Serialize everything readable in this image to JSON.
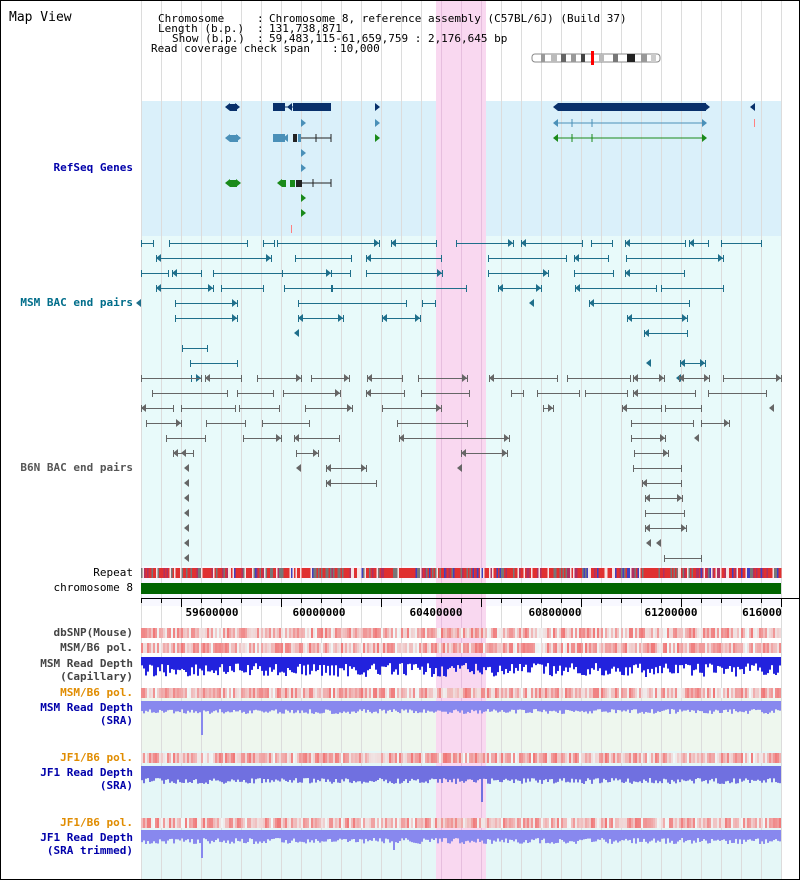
{
  "title": "Map View",
  "header": {
    "chromosome_key": "Chromosome",
    "chromosome_val": "Chromosome 8, reference assembly (C57BL/6J) (Build 37)",
    "length_key": "Length (b.p.)",
    "length_val": "131,738,871",
    "show_key": "Show (b.p.)",
    "show_val": "59,483,115-61,659,759 : 2,176,645 bp",
    "read_key": "Read coverage check span",
    "read_val": "10,000"
  },
  "tracks": {
    "refseq": "RefSeq Genes",
    "msm_bac": "MSM BAC end pairs",
    "b6n_bac": "B6N BAC end pairs",
    "repeat": "Repeat",
    "chromosome": "chromosome 8",
    "dbsnp": "dbSNP(Mouse)",
    "msm_b6_pol_1": "MSM/B6 pol.",
    "msm_depth_cap_1": "MSM Read Depth",
    "msm_depth_cap_2": "(Capillary)",
    "msm_b6_pol_2": "MSM/B6 pol.",
    "msm_depth_sra_1": "MSM Read Depth",
    "msm_depth_sra_2": "(SRA)",
    "jf1_b6_pol_1": "JF1/B6 pol.",
    "jf1_depth_1": "JF1 Read Depth",
    "jf1_depth_2": "(SRA)",
    "jf1_b6_pol_2": "JF1/B6 pol.",
    "jf1_trim_1": "JF1 Read Depth",
    "jf1_trim_2": "(SRA trimmed)"
  },
  "axis": {
    "ticks": [
      "59600000",
      "60000000",
      "60400000",
      "60800000",
      "61200000",
      "616000"
    ]
  },
  "colors": {
    "refseq_bg": "#daf0fa",
    "bac_bg": "#e8fafa",
    "highlight": "#f9d8f0",
    "gene_dark": "#08306b",
    "gene_mid": "#4a90b8",
    "gene_green": "#1a8a1a",
    "msm_line": "#1f6f8b",
    "b6n_line": "#666666",
    "chrom_green": "#006400",
    "label_blue": "#0000aa",
    "label_teal": "#006d8a",
    "label_orange": "#e08c00",
    "depth_blue": "#2222dd",
    "depth_light": "#8888ee"
  }
}
